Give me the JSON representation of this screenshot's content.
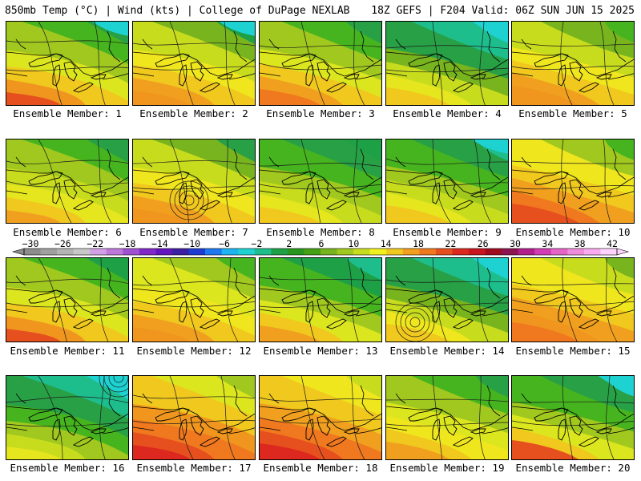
{
  "header": {
    "left": "850mb Temp (°C) | Wind (kts) | College of DuPage NEXLAB",
    "right": "18Z GEFS | F204 Valid: 06Z SUN JUN 15 2025"
  },
  "colorbar": {
    "labels": [
      "−30",
      "−26",
      "−22",
      "−18",
      "−14",
      "−10",
      "−6",
      "−2",
      "2",
      "6",
      "10",
      "14",
      "18",
      "22",
      "26",
      "30",
      "34",
      "38",
      "42"
    ],
    "colors": [
      "#8c8c8c",
      "#a0a0a0",
      "#b4b4b4",
      "#c8c8c8",
      "#d2a0e6",
      "#be78dc",
      "#a050d2",
      "#8228c8",
      "#6414be",
      "#3c1ea0",
      "#1e3cd2",
      "#1e78f0",
      "#1eb4f0",
      "#1ed2d2",
      "#1ebe8c",
      "#1ea046",
      "#28961e",
      "#46a014",
      "#78b41e",
      "#a0c81e",
      "#c8dc1e",
      "#f0f01e",
      "#f0c81e",
      "#f0a01e",
      "#f0781e",
      "#e6501e",
      "#dc281e",
      "#c8141e",
      "#a00a1e",
      "#8c1450",
      "#b41e8c",
      "#d23cb4",
      "#e664c8",
      "#f08cdc",
      "#faaaf0",
      "#ffd2ff"
    ]
  },
  "members": [
    {
      "label": "Ensemble Member: 1",
      "palette": [
        "#28a046",
        "#46b41e",
        "#a0c81e",
        "#dce61e",
        "#f0c81e",
        "#f0961e",
        "#e6501e"
      ],
      "cyan": true
    },
    {
      "label": "Ensemble Member: 2",
      "palette": [
        "#1ea046",
        "#78b41e",
        "#c8dc1e",
        "#f0e61e",
        "#f0c81e",
        "#f0a01e",
        "#f0961e"
      ],
      "cyan": true
    },
    {
      "label": "Ensemble Member: 3",
      "palette": [
        "#28a046",
        "#46b41e",
        "#a0c81e",
        "#dce61e",
        "#f0c81e",
        "#f0a01e",
        "#f0781e"
      ],
      "cyan": false
    },
    {
      "label": "Ensemble Member: 4",
      "palette": [
        "#1ed2d2",
        "#1ebe8c",
        "#28a046",
        "#78b41e",
        "#c8dc1e",
        "#e6e61e",
        "#f0c81e"
      ],
      "cyan": true
    },
    {
      "label": "Ensemble Member: 5",
      "palette": [
        "#46b41e",
        "#78b41e",
        "#c8dc1e",
        "#f0e61e",
        "#f0c81e",
        "#f0a01e",
        "#f0961e"
      ],
      "cyan": false
    },
    {
      "label": "Ensemble Member: 6",
      "palette": [
        "#28a046",
        "#46b41e",
        "#a0c81e",
        "#c8dc1e",
        "#e6e61e",
        "#f0c81e",
        "#f0a01e"
      ],
      "cyan": false
    },
    {
      "label": "Ensemble Member: 7",
      "palette": [
        "#28a046",
        "#78b41e",
        "#c8dc1e",
        "#f0e61e",
        "#f0c81e",
        "#f0a01e",
        "#f0961e"
      ],
      "cyan": false
    },
    {
      "label": "Ensemble Member: 8",
      "palette": [
        "#1ea046",
        "#28a046",
        "#46b41e",
        "#a0c81e",
        "#c8dc1e",
        "#e6e61e",
        "#f0c81e"
      ],
      "cyan": false
    },
    {
      "label": "Ensemble Member: 9",
      "palette": [
        "#1ebe8c",
        "#28a046",
        "#46b41e",
        "#a0c81e",
        "#c8dc1e",
        "#e6e61e",
        "#f0c81e"
      ],
      "cyan": true
    },
    {
      "label": "Ensemble Member: 10",
      "palette": [
        "#46b41e",
        "#a0c81e",
        "#f0e61e",
        "#f0c81e",
        "#f0a01e",
        "#f0781e",
        "#e6501e"
      ],
      "cyan": false
    },
    {
      "label": "Ensemble Member: 11",
      "palette": [
        "#1ea046",
        "#46b41e",
        "#a0c81e",
        "#dce61e",
        "#f0c81e",
        "#f0961e",
        "#e6501e"
      ],
      "cyan": false
    },
    {
      "label": "Ensemble Member: 12",
      "palette": [
        "#46b41e",
        "#a0c81e",
        "#dce61e",
        "#f0e61e",
        "#f0c81e",
        "#f0a01e",
        "#f0961e"
      ],
      "cyan": false
    },
    {
      "label": "Ensemble Member: 13",
      "palette": [
        "#1ebe8c",
        "#1ea046",
        "#46b41e",
        "#a0c81e",
        "#dce61e",
        "#f0c81e",
        "#f0a01e"
      ],
      "cyan": false
    },
    {
      "label": "Ensemble Member: 14",
      "palette": [
        "#1ed2d2",
        "#1ebe8c",
        "#28a046",
        "#78b41e",
        "#c8dc1e",
        "#f0e61e",
        "#f0c81e"
      ],
      "cyan": true
    },
    {
      "label": "Ensemble Member: 15",
      "palette": [
        "#78b41e",
        "#c8dc1e",
        "#f0e61e",
        "#f0c81e",
        "#f0a01e",
        "#f0961e",
        "#f0781e"
      ],
      "cyan": false
    },
    {
      "label": "Ensemble Member: 16",
      "palette": [
        "#1ed2d2",
        "#1ebe8c",
        "#28a046",
        "#46b41e",
        "#a0c81e",
        "#c8dc1e",
        "#e6e61e"
      ],
      "cyan": true
    },
    {
      "label": "Ensemble Member: 17",
      "palette": [
        "#a0c81e",
        "#dce61e",
        "#f0c81e",
        "#f0961e",
        "#f0781e",
        "#e6501e",
        "#dc281e"
      ],
      "cyan": false
    },
    {
      "label": "Ensemble Member: 18",
      "palette": [
        "#c8dc1e",
        "#f0e61e",
        "#f0c81e",
        "#f0a01e",
        "#f0781e",
        "#e6501e",
        "#dc281e"
      ],
      "cyan": false
    },
    {
      "label": "Ensemble Member: 19",
      "palette": [
        "#28a046",
        "#46b41e",
        "#a0c81e",
        "#dce61e",
        "#f0e61e",
        "#f0c81e",
        "#f0a01e"
      ],
      "cyan": false
    },
    {
      "label": "Ensemble Member: 20",
      "palette": [
        "#1ed2d2",
        "#28a046",
        "#46b41e",
        "#a0c81e",
        "#dce61e",
        "#f0c81e",
        "#e6501e"
      ],
      "cyan": true
    }
  ]
}
